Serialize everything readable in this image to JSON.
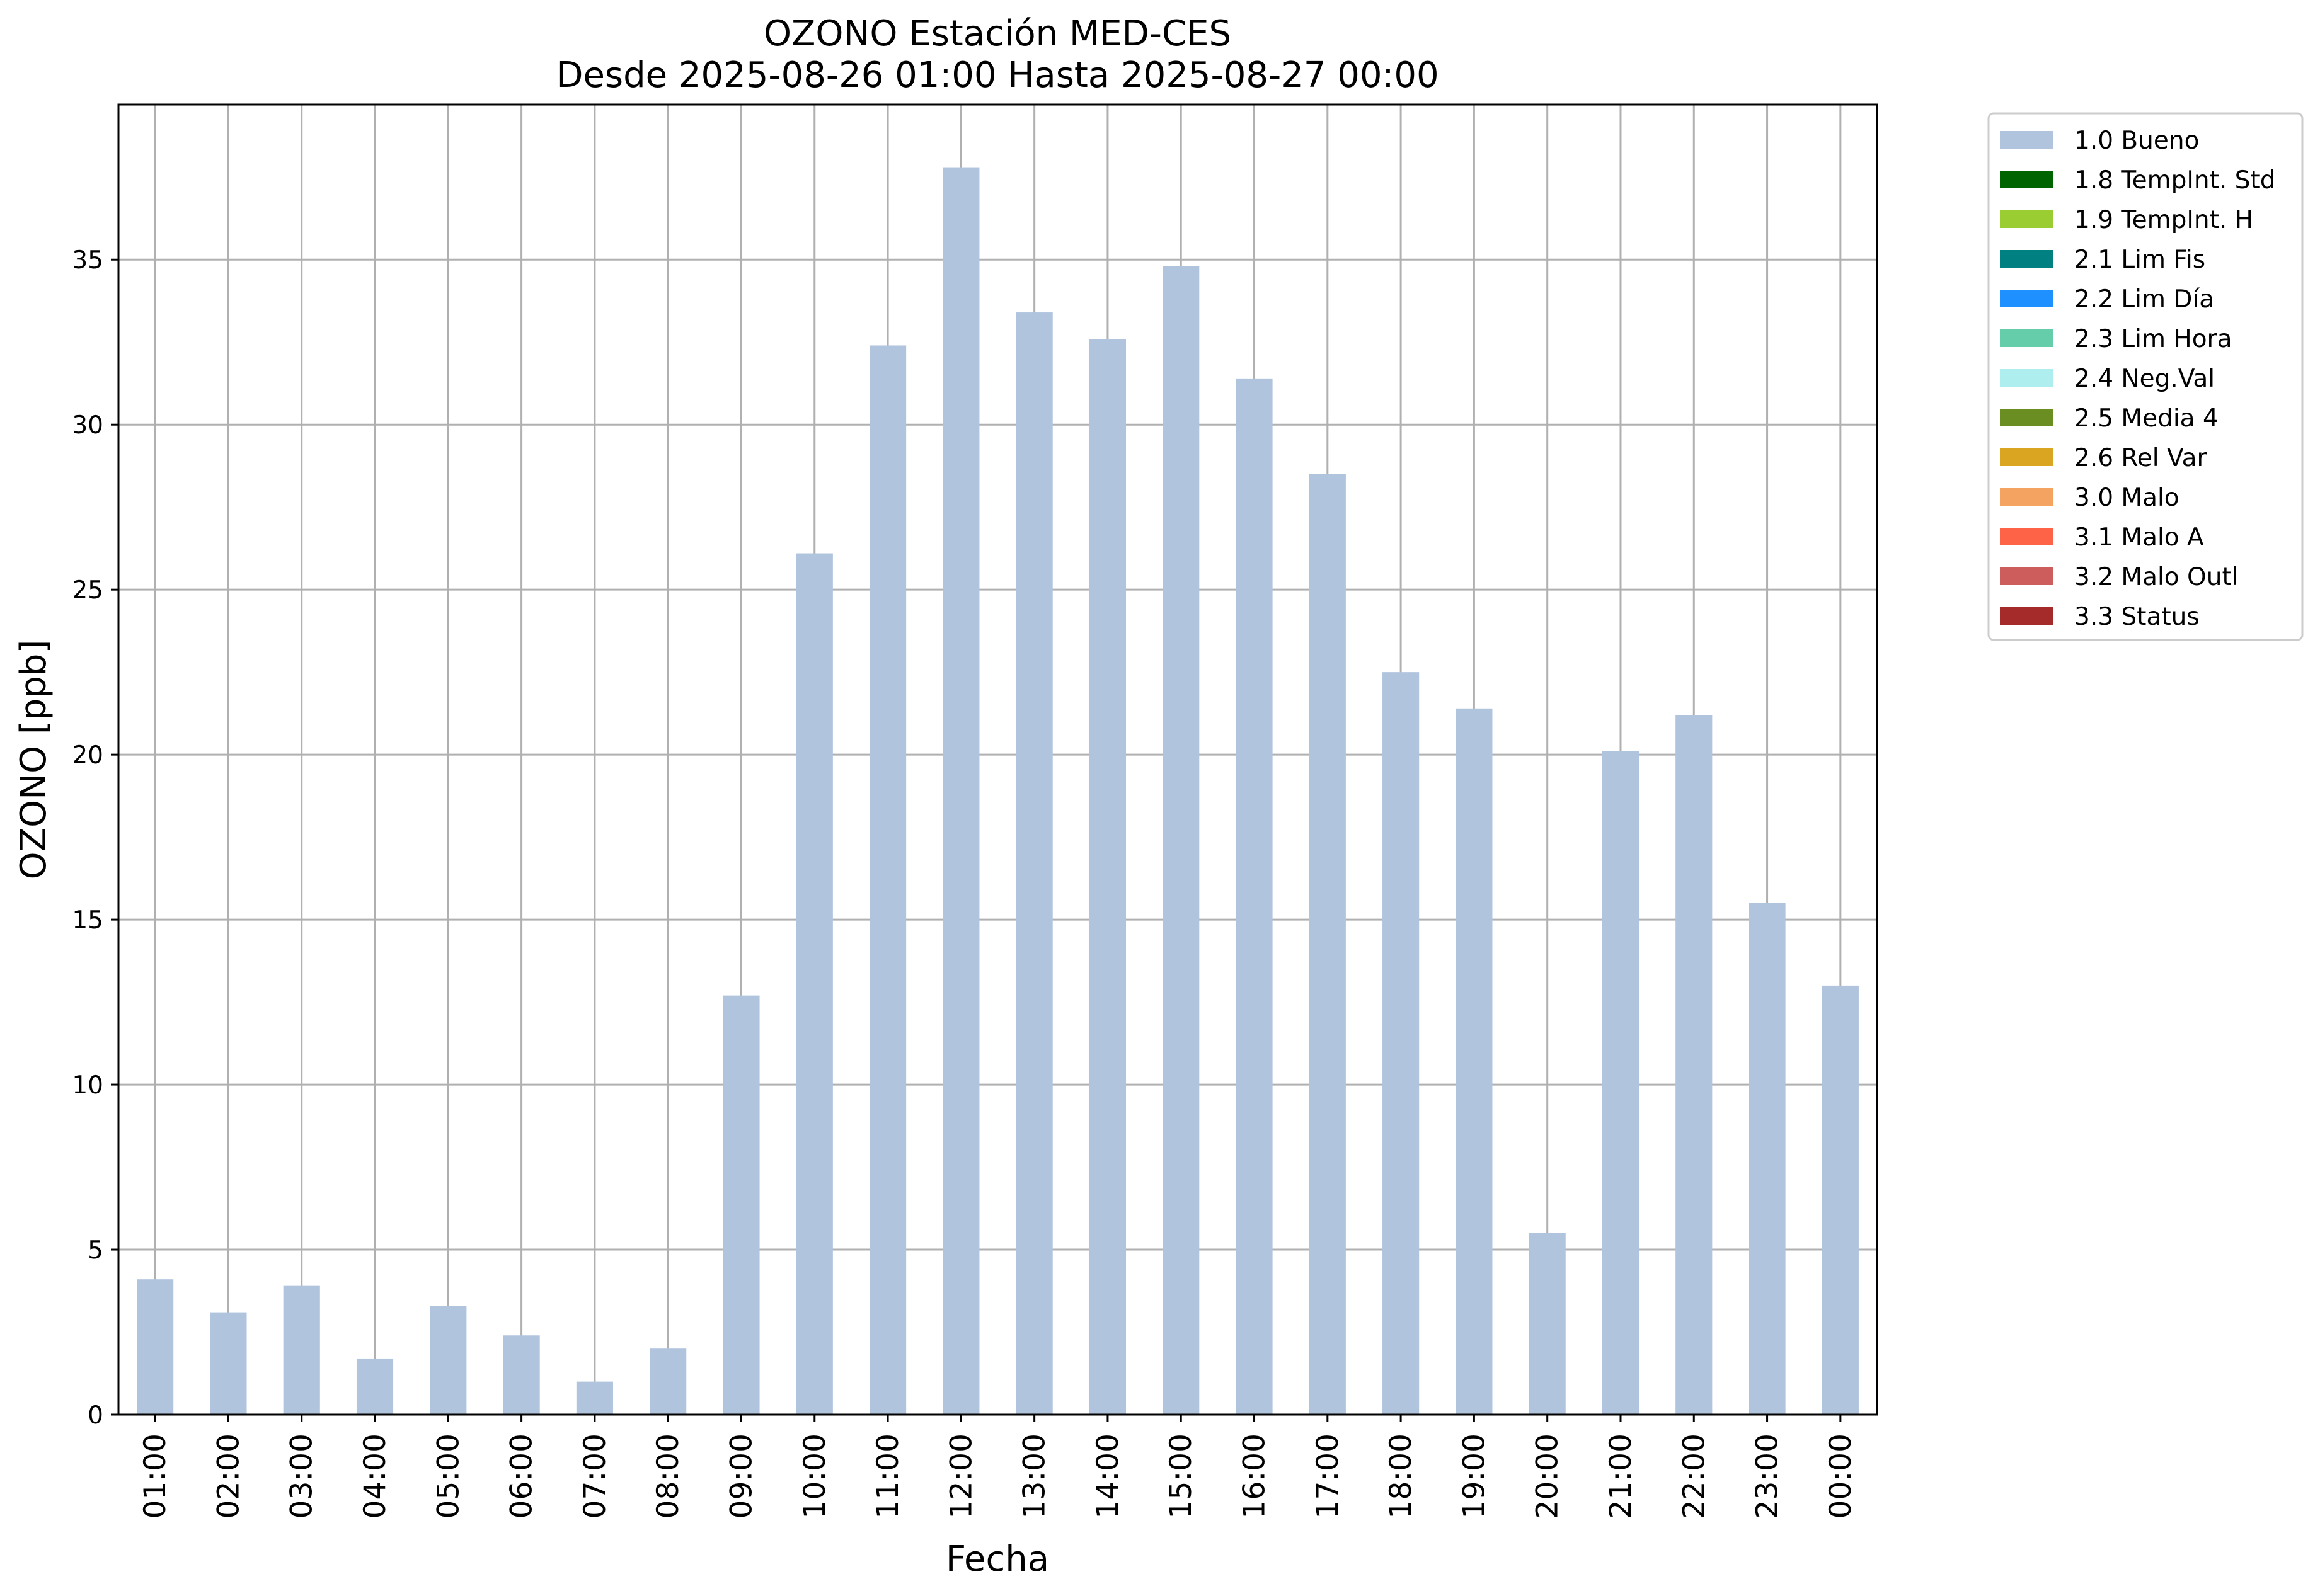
{
  "chart_data": {
    "type": "bar",
    "title": "OZONO Estación MED-CES",
    "subtitle": "Desde 2025-08-26 01:00 Hasta 2025-08-27 00:00",
    "xlabel": "Fecha",
    "ylabel": "OZONO [ppb]",
    "ylim": [
      0,
      39.7
    ],
    "yticks": [
      0,
      5,
      10,
      15,
      20,
      25,
      30,
      35
    ],
    "grid": true,
    "legend_position": "outside-top-right",
    "categories": [
      "01:00",
      "02:00",
      "03:00",
      "04:00",
      "05:00",
      "06:00",
      "07:00",
      "08:00",
      "09:00",
      "10:00",
      "11:00",
      "12:00",
      "13:00",
      "14:00",
      "15:00",
      "16:00",
      "17:00",
      "18:00",
      "19:00",
      "20:00",
      "21:00",
      "22:00",
      "23:00",
      "00:00"
    ],
    "series": [
      {
        "name": "1.0 Bueno",
        "color": "#b0c4de",
        "values": [
          4.1,
          3.1,
          3.9,
          1.7,
          3.3,
          2.4,
          1.0,
          2.0,
          12.7,
          26.1,
          32.4,
          37.8,
          33.4,
          32.6,
          34.8,
          31.4,
          28.5,
          22.5,
          21.4,
          5.5,
          20.1,
          21.2,
          15.5,
          13.0
        ]
      }
    ],
    "legend": [
      {
        "label": "1.0 Bueno",
        "color": "#b0c4de"
      },
      {
        "label": "1.8 TempInt. Std",
        "color": "#006400"
      },
      {
        "label": "1.9 TempInt. H",
        "color": "#9acd32"
      },
      {
        "label": "2.1 Lim Fis",
        "color": "#008080"
      },
      {
        "label": "2.2 Lim Día",
        "color": "#1e90ff"
      },
      {
        "label": "2.3 Lim Hora",
        "color": "#66cdaa"
      },
      {
        "label": "2.4 Neg.Val",
        "color": "#afeeee"
      },
      {
        "label": "2.5 Media 4",
        "color": "#6b8e23"
      },
      {
        "label": "2.6 Rel Var",
        "color": "#daa520"
      },
      {
        "label": "3.0 Malo",
        "color": "#f4a460"
      },
      {
        "label": "3.1 Malo A",
        "color": "#ff6347"
      },
      {
        "label": "3.2 Malo Outl",
        "color": "#cd5c5c"
      },
      {
        "label": "3.3 Status",
        "color": "#a52a2a"
      }
    ]
  }
}
